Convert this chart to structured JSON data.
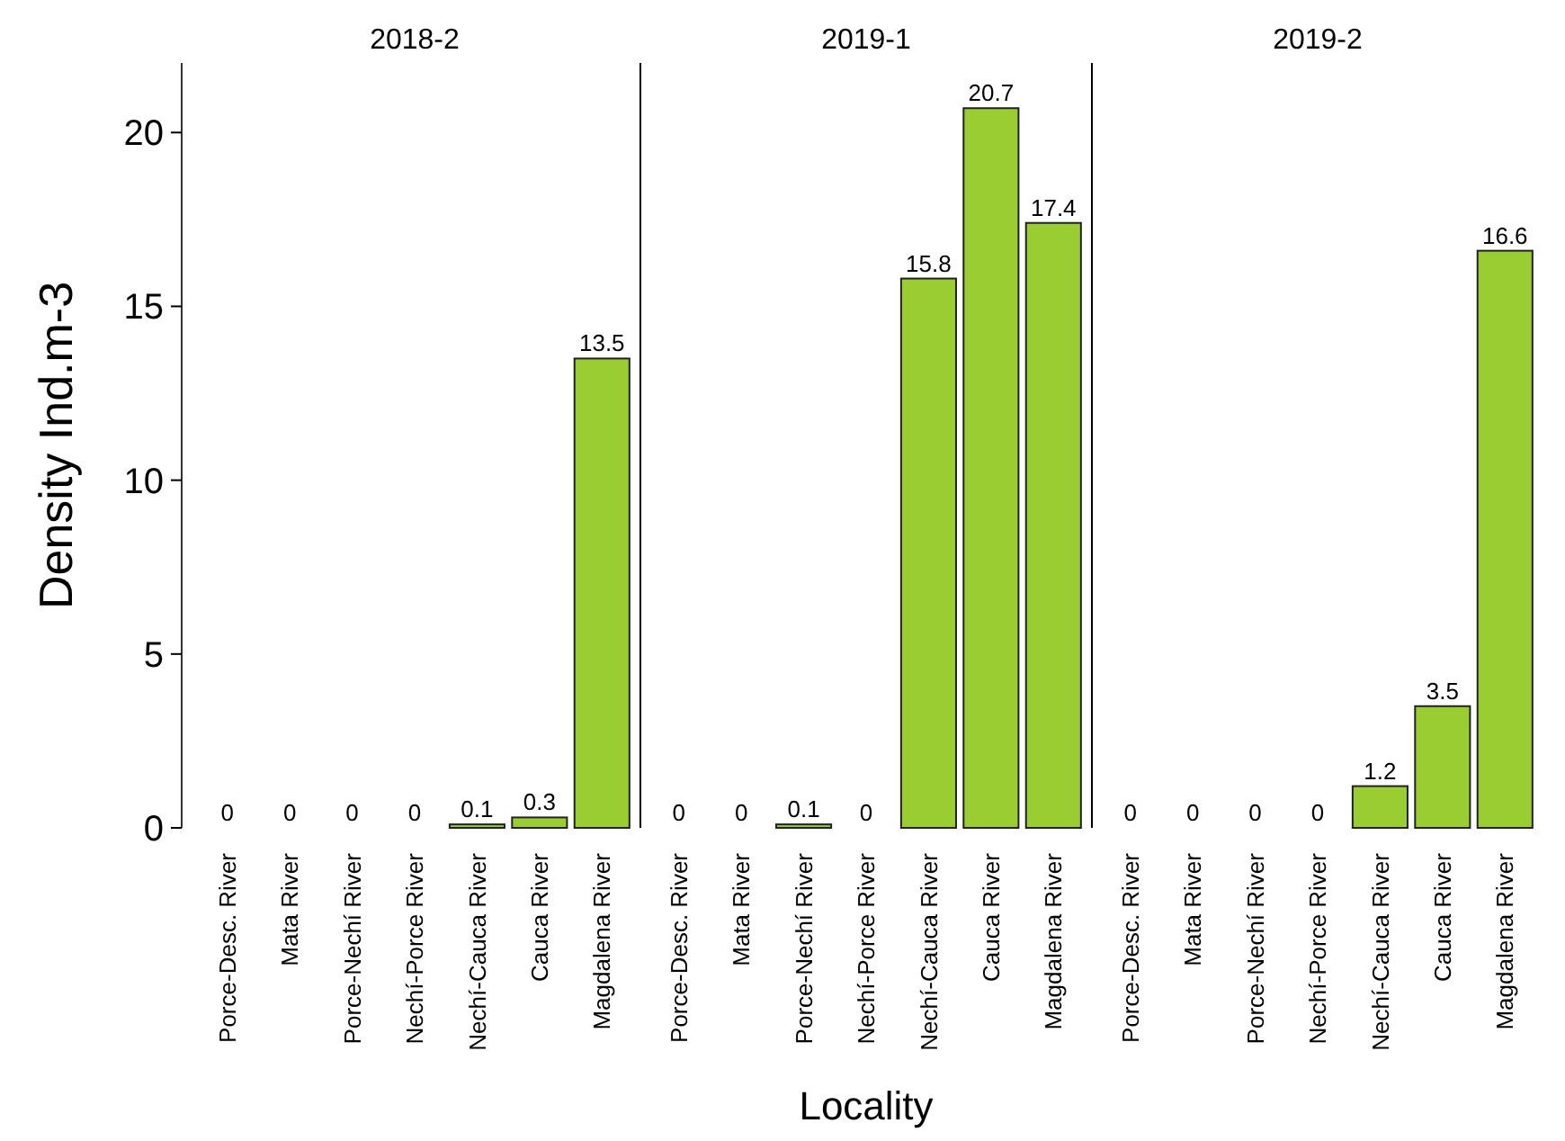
{
  "chart_data": [
    {
      "type": "bar",
      "title": "2018-2",
      "ylabel": "Density Ind.m-3",
      "categories": [
        "Porce-Desc. River",
        "Mata River",
        "Porce-Nechí River",
        "Nechí-Porce River",
        "Nechí-Cauca River",
        "Cauca River",
        "Magdalena River"
      ],
      "values": [
        0,
        0,
        0,
        0,
        0.1,
        0.3,
        13.5
      ],
      "color": "#9acd32",
      "ylim": [
        0,
        22
      ],
      "yticks": [
        0,
        5,
        10,
        15,
        20
      ],
      "data_labels": true,
      "grid": false
    },
    {
      "type": "bar",
      "title": "2019-1",
      "xlabel": "Locality",
      "categories": [
        "Porce-Desc. River",
        "Mata River",
        "Porce-Nechí River",
        "Nechí-Porce River",
        "Nechí-Cauca River",
        "Cauca River",
        "Magdalena River"
      ],
      "values": [
        0,
        0,
        0.1,
        0,
        15.8,
        20.7,
        17.4
      ],
      "color": "#9acd32",
      "ylim": [
        0,
        22
      ],
      "tick_labels": "x",
      "data_labels": true,
      "grid": false
    },
    {
      "type": "bar",
      "title": "2019-2",
      "categories": [
        "Porce-Desc. River",
        "Mata River",
        "Porce-Nechí River",
        "Nechí-Porce River",
        "Nechí-Cauca River",
        "Cauca River",
        "Magdalena River"
      ],
      "values": [
        0,
        0,
        0,
        0,
        1.2,
        3.5,
        16.6
      ],
      "color": "#9acd32",
      "ylim": [
        0,
        22
      ],
      "tick_labels": "x",
      "data_labels": true,
      "grid": false
    }
  ]
}
